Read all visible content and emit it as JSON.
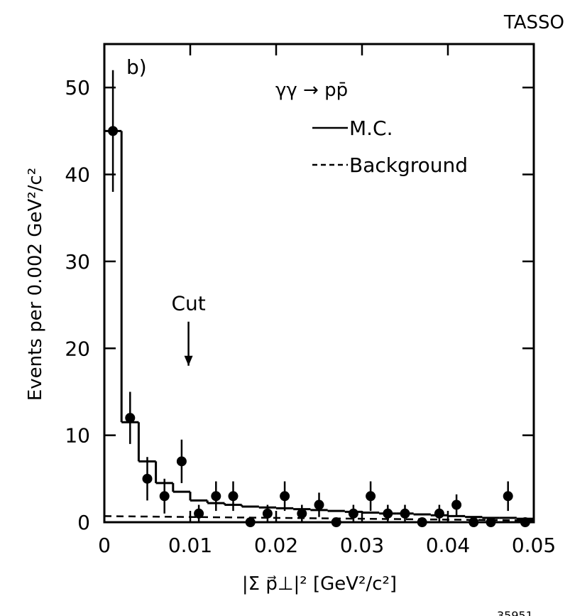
{
  "chart_data": {
    "type": "histogram",
    "corner_label": "TASSO",
    "panel_label": "b)",
    "process": "γγ → pp̄",
    "xlabel": "|Σ p⃗⊥|² [GeV²/c²]",
    "ylabel": "Events per 0.002 GeV²/c²",
    "figure_number": "35951",
    "xlim": [
      0,
      0.05
    ],
    "ylim": [
      0,
      55
    ],
    "xticks": [
      0,
      0.01,
      0.02,
      0.03,
      0.04,
      0.05
    ],
    "yticks": [
      0,
      10,
      20,
      30,
      40,
      50
    ],
    "bins": [
      0,
      0.002,
      0.004,
      0.006,
      0.008,
      0.01,
      0.012,
      0.014,
      0.016,
      0.018,
      0.02,
      0.022,
      0.024,
      0.026,
      0.028,
      0.03,
      0.032,
      0.034,
      0.036,
      0.038,
      0.04,
      0.042,
      0.044,
      0.046,
      0.048,
      0.05
    ],
    "series": [
      {
        "name": "M.C.",
        "color": "#000000",
        "dash": false,
        "values": [
          45,
          11.5,
          7,
          4.5,
          3.5,
          2.5,
          2.2,
          2,
          1.8,
          1.7,
          1.6,
          1.5,
          1.4,
          1.3,
          1.2,
          1.1,
          1.0,
          1.0,
          0.9,
          0.8,
          0.7,
          0.6,
          0.5,
          0.5,
          0.4
        ]
      },
      {
        "name": "Background",
        "color": "#000000",
        "dash": true,
        "x": [
          0,
          0.05
        ],
        "values": [
          0.7,
          0.2
        ]
      }
    ],
    "points": {
      "color": "#000000",
      "x": [
        0.001,
        0.003,
        0.005,
        0.007,
        0.009,
        0.011,
        0.013,
        0.015,
        0.017,
        0.019,
        0.021,
        0.023,
        0.025,
        0.027,
        0.029,
        0.031,
        0.033,
        0.035,
        0.037,
        0.039,
        0.041,
        0.043,
        0.045,
        0.047,
        0.049
      ],
      "values": [
        45,
        12,
        5,
        3,
        7,
        1,
        3,
        3,
        0,
        1,
        3,
        1,
        2,
        0,
        1,
        3,
        1,
        1,
        0,
        1,
        2,
        0,
        0,
        3,
        0
      ],
      "errors": [
        7,
        3,
        2.5,
        2,
        2.5,
        1,
        1.7,
        1.7,
        0,
        1,
        1.7,
        1,
        1.4,
        0,
        1,
        1.7,
        1,
        1,
        0,
        1,
        1.2,
        0,
        0,
        1.7,
        0
      ]
    },
    "annotations": [
      {
        "text": "Cut",
        "x": 0.0098,
        "y": 18
      }
    ]
  }
}
